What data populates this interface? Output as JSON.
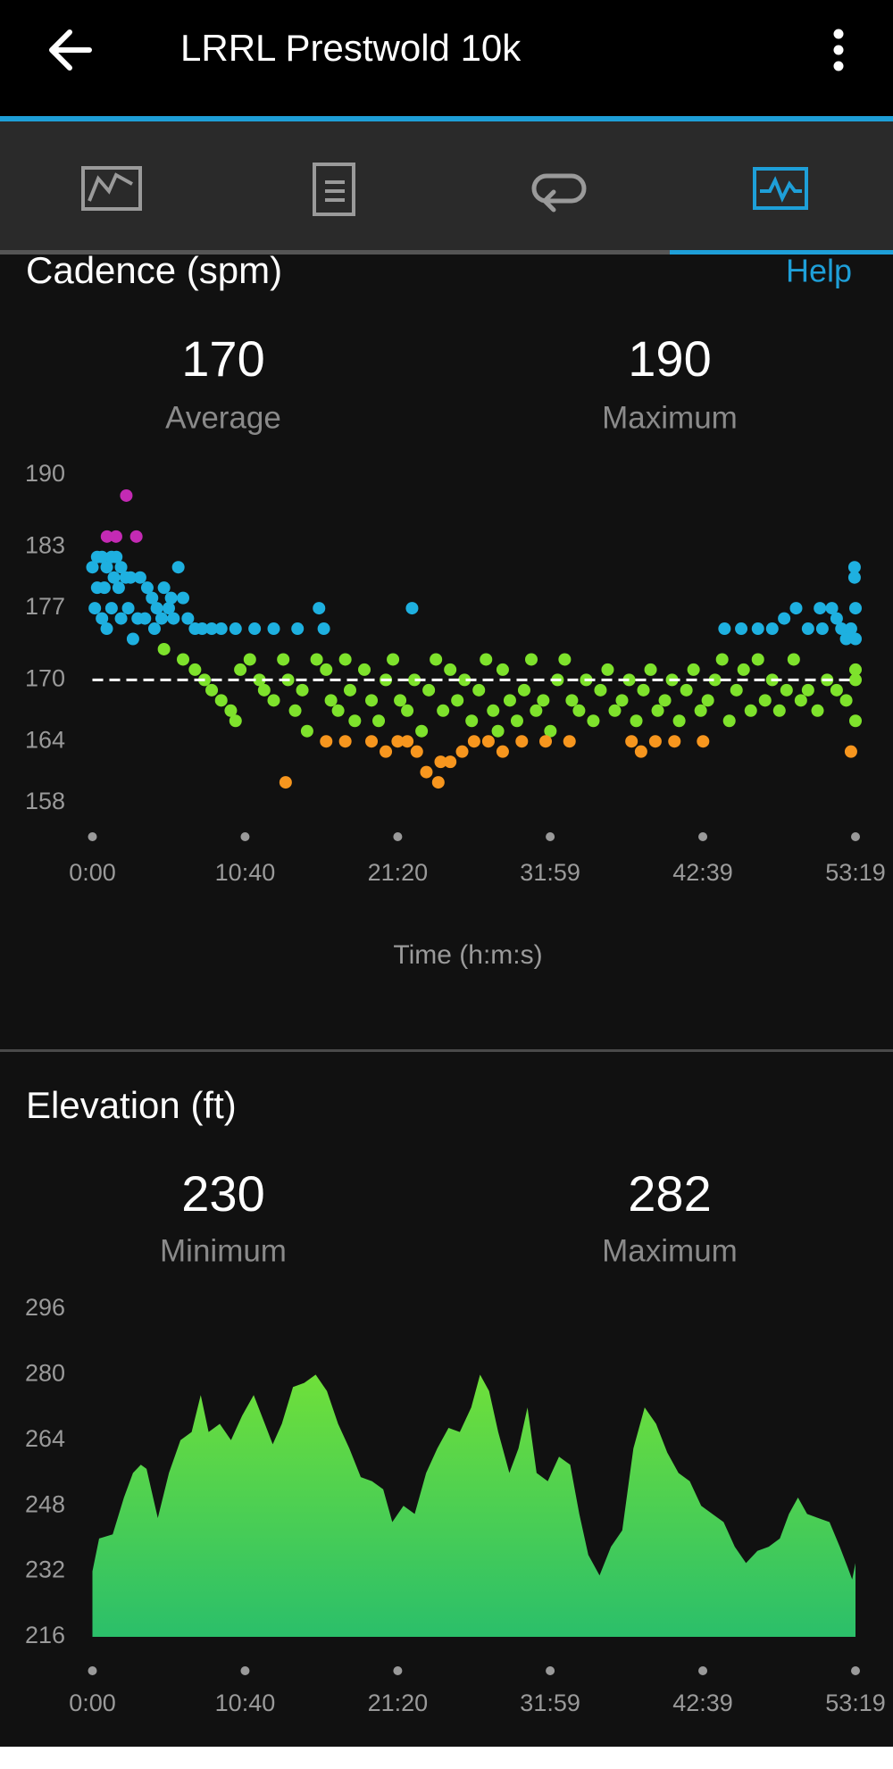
{
  "header": {
    "title": "LRRL Prestwold 10k"
  },
  "help": "Help",
  "chart_data": [
    {
      "type": "scatter",
      "title": "Cadence (spm)",
      "stats": [
        {
          "value": 170,
          "label": "Average"
        },
        {
          "value": 190,
          "label": "Maximum"
        }
      ],
      "average_line": true,
      "xlabel": "Time (h:m:s)",
      "xlim": [
        0,
        3199
      ],
      "xticks": [
        {
          "value": 0,
          "label": "0:00"
        },
        {
          "value": 640,
          "label": "10:40"
        },
        {
          "value": 1280,
          "label": "21:20"
        },
        {
          "value": 1919,
          "label": "31:59"
        },
        {
          "value": 2559,
          "label": "42:39"
        },
        {
          "value": 3199,
          "label": "53:19"
        }
      ],
      "ylim": [
        158,
        190
      ],
      "yticks": [
        158,
        164,
        170,
        177,
        183,
        190
      ],
      "series": [
        {
          "color": "#c42ab4",
          "x": [
            142,
            61,
            99,
            184
          ],
          "values": [
            188,
            184,
            184,
            184
          ]
        },
        {
          "color": "#1eb0e0",
          "x": [
            0,
            20,
            40,
            60,
            80,
            100,
            120,
            140,
            20,
            50,
            90,
            110,
            160,
            200,
            230,
            250,
            270,
            300,
            330,
            360,
            380,
            10,
            40,
            80,
            120,
            150,
            190,
            220,
            260,
            290,
            320,
            340,
            60,
            170,
            400,
            430,
            460,
            500,
            540,
            600,
            680,
            760,
            860,
            950,
            970,
            1340,
            3050,
            3100,
            3140,
            3180,
            3195,
            3195,
            3199,
            3199,
            2650,
            2720,
            2790,
            2850,
            2900,
            2950,
            3000,
            3060,
            3120,
            3160
          ],
          "values": [
            181,
            182,
            182,
            181,
            182,
            182,
            181,
            180,
            179,
            179,
            180,
            179,
            180,
            180,
            179,
            178,
            177,
            179,
            178,
            181,
            178,
            177,
            176,
            177,
            176,
            177,
            176,
            176,
            175,
            176,
            177,
            176,
            175,
            174,
            176,
            175,
            175,
            175,
            175,
            175,
            175,
            175,
            175,
            177,
            175,
            177,
            177,
            177,
            175,
            175,
            181,
            180,
            177,
            174,
            175,
            175,
            175,
            175,
            176,
            177,
            175,
            175,
            176,
            174
          ]
        },
        {
          "color": "#7ee22c",
          "x": [
            300,
            380,
            430,
            470,
            500,
            540,
            580,
            600,
            620,
            660,
            700,
            720,
            760,
            800,
            820,
            850,
            880,
            900,
            940,
            980,
            1000,
            1030,
            1060,
            1080,
            1100,
            1140,
            1170,
            1200,
            1230,
            1260,
            1290,
            1320,
            1350,
            1380,
            1410,
            1440,
            1470,
            1500,
            1530,
            1560,
            1590,
            1620,
            1650,
            1680,
            1700,
            1720,
            1750,
            1780,
            1810,
            1840,
            1860,
            1890,
            1920,
            1950,
            1980,
            2010,
            2040,
            2070,
            2100,
            2130,
            2160,
            2190,
            2220,
            2250,
            2280,
            2310,
            2340,
            2370,
            2400,
            2430,
            2460,
            2490,
            2520,
            2550,
            2580,
            2610,
            2640,
            2670,
            2700,
            2730,
            2760,
            2790,
            2820,
            2850,
            2880,
            2910,
            2940,
            2970,
            3000,
            3040,
            3080,
            3120,
            3160,
            3199,
            3199,
            3199
          ],
          "values": [
            173,
            172,
            171,
            170,
            169,
            168,
            167,
            166,
            171,
            172,
            170,
            169,
            168,
            172,
            170,
            167,
            169,
            165,
            172,
            171,
            168,
            167,
            172,
            169,
            166,
            171,
            168,
            166,
            170,
            172,
            168,
            167,
            170,
            165,
            169,
            172,
            167,
            171,
            168,
            170,
            166,
            169,
            172,
            167,
            165,
            171,
            168,
            166,
            169,
            172,
            167,
            168,
            165,
            170,
            172,
            168,
            167,
            170,
            166,
            169,
            171,
            167,
            168,
            170,
            166,
            169,
            171,
            167,
            168,
            170,
            166,
            169,
            171,
            167,
            168,
            170,
            172,
            166,
            169,
            171,
            167,
            172,
            168,
            170,
            167,
            169,
            172,
            168,
            169,
            167,
            170,
            169,
            168,
            170,
            166,
            171
          ]
        },
        {
          "color": "#f7961e",
          "x": [
            980,
            1060,
            1170,
            1230,
            1280,
            1320,
            1360,
            1400,
            1460,
            1500,
            1550,
            1600,
            1660,
            1720,
            1800,
            1900,
            2000,
            2260,
            2300,
            2360,
            2440,
            2560,
            3180,
            810,
            1450
          ],
          "values": [
            164,
            164,
            164,
            163,
            164,
            164,
            163,
            161,
            162,
            162,
            163,
            164,
            164,
            163,
            164,
            164,
            164,
            164,
            163,
            164,
            164,
            164,
            163,
            160,
            160
          ]
        }
      ]
    },
    {
      "type": "area",
      "title": "Elevation (ft)",
      "stats": [
        {
          "value": 230,
          "label": "Minimum"
        },
        {
          "value": 282,
          "label": "Maximum"
        }
      ],
      "xlim": [
        0,
        3199
      ],
      "xticks": [
        {
          "value": 0,
          "label": "0:00"
        },
        {
          "value": 640,
          "label": "10:40"
        },
        {
          "value": 1280,
          "label": "21:20"
        },
        {
          "value": 1919,
          "label": "31:59"
        },
        {
          "value": 2559,
          "label": "42:39"
        },
        {
          "value": 3199,
          "label": "53:19"
        }
      ],
      "ylim": [
        216,
        296
      ],
      "yticks": [
        216,
        232,
        248,
        264,
        280,
        296
      ],
      "color": [
        "#6fe03a",
        "#2bbf6a"
      ],
      "x": [
        0,
        28,
        85,
        132,
        170,
        203,
        227,
        274,
        321,
        369,
        416,
        454,
        487,
        534,
        581,
        628,
        676,
        723,
        756,
        794,
        841,
        888,
        936,
        983,
        1030,
        1077,
        1125,
        1172,
        1219,
        1257,
        1304,
        1351,
        1399,
        1446,
        1493,
        1540,
        1588,
        1625,
        1663,
        1701,
        1748,
        1786,
        1824,
        1862,
        1909,
        1956,
        2003,
        2041,
        2079,
        2126,
        2174,
        2221,
        2268,
        2315,
        2363,
        2410,
        2457,
        2504,
        2552,
        2599,
        2646,
        2693,
        2740,
        2788,
        2835,
        2882,
        2920,
        2958,
        2996,
        3043,
        3090,
        3133,
        3166,
        3185,
        3199
      ],
      "values": [
        232,
        240,
        241,
        250,
        256,
        258,
        257,
        245,
        256,
        264,
        266,
        275,
        266,
        268,
        264,
        270,
        275,
        268,
        263,
        268,
        277,
        278,
        280,
        276,
        268,
        262,
        255,
        254,
        252,
        244,
        248,
        246,
        256,
        262,
        267,
        266,
        272,
        280,
        276,
        266,
        256,
        262,
        272,
        256,
        254,
        260,
        258,
        246,
        236,
        231,
        238,
        242,
        262,
        272,
        268,
        261,
        256,
        254,
        248,
        246,
        244,
        238,
        234,
        237,
        238,
        240,
        246,
        250,
        246,
        245,
        244,
        238,
        233,
        230,
        234
      ]
    }
  ]
}
